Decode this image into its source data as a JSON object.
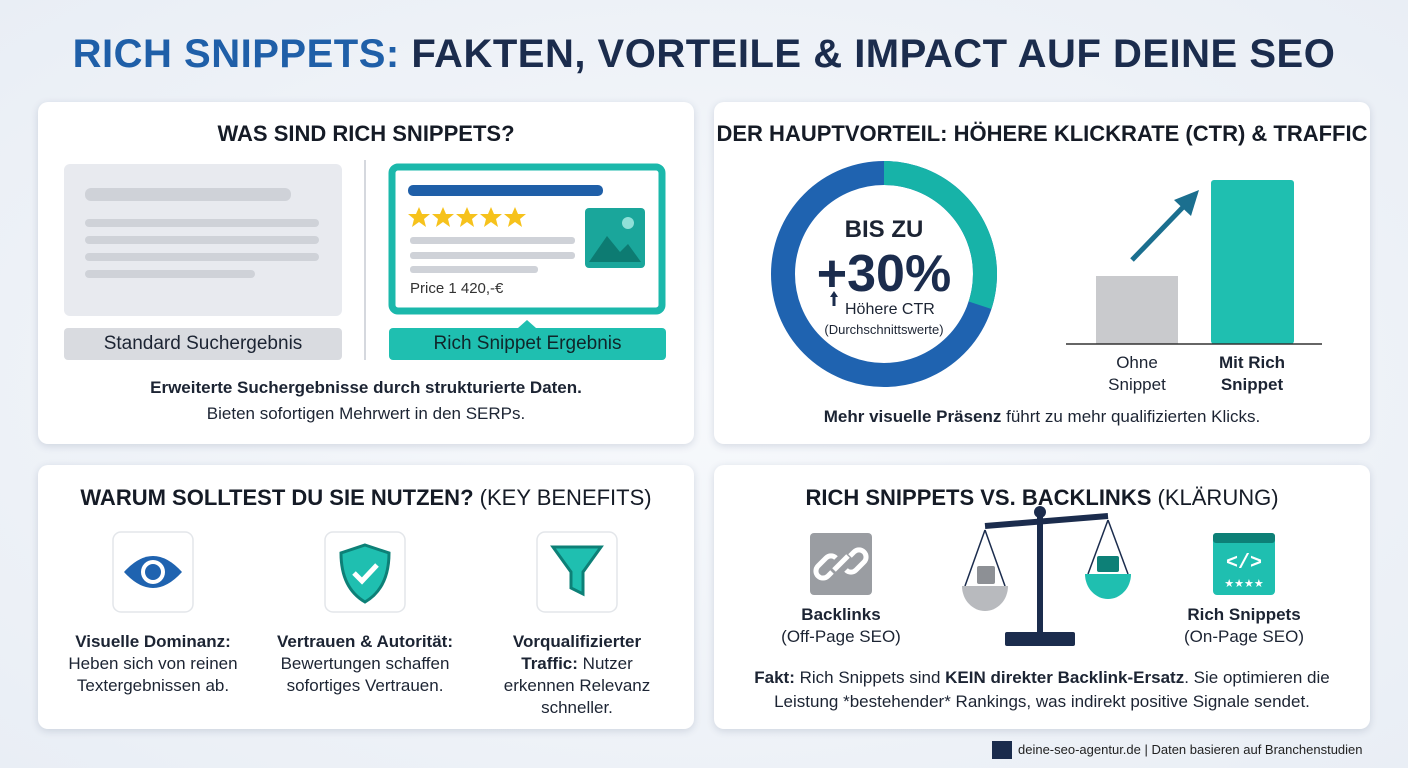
{
  "title": {
    "highlight": "RICH SNIPPETS:",
    "rest": "FAKTEN, VORTEILE & IMPACT AUF DEINE SEO"
  },
  "what": {
    "heading": "WAS SIND RICH SNIPPETS?",
    "standard_label": "Standard Suchergebnis",
    "rich_price": "Price 1 420,-€",
    "rich_label": "Rich Snippet Ergebnis",
    "summary_bold": "Erweiterte Suchergebnisse durch strukturierte Daten.",
    "summary": "Bieten sofortigen Mehrwert in den SERPs."
  },
  "ctr": {
    "heading": "DER HAUPTVORTEIL: HÖHERE KLICKRATE (CTR) & TRAFFIC",
    "donut_top": "BIS ZU",
    "donut_value": {
      "value": 30,
      "label": "+30%"
    },
    "donut_caption": "Höhere CTR",
    "donut_note": "(Durchschnittswerte)",
    "bars": [
      {
        "label": "Ohne Snippet"
      },
      {
        "label": "Mit Rich Snippet"
      }
    ],
    "note_bold": "Mehr visuelle Präsenz",
    "note": "führt zu mehr qualifizierten Klicks."
  },
  "benefits": {
    "heading_bold": "WARUM SOLLTEST DU SIE NUTZEN?",
    "heading_rest": "(KEY BENEFITS)",
    "items": [
      {
        "title": "Visuelle Dominanz:",
        "text": "Heben sich von reinen Textergebnissen ab."
      },
      {
        "title": "Vertrauen & Autorität:",
        "text": "Bewertungen schaffen sofortiges Vertrauen."
      },
      {
        "title": "Vorqualifizierter Traffic:",
        "text": "Nutzer erkennen Relevanz schneller."
      }
    ]
  },
  "versus": {
    "heading_bold": "RICH SNIPPETS VS. BACKLINKS",
    "heading_rest": "(KLÄRUNG)",
    "left_title": "Backlinks",
    "left_sub": "(Off-Page SEO)",
    "right_title": "Rich Snippets",
    "right_sub": "(On-Page SEO)",
    "fact_label": "Fakt:",
    "fact_text_1": "Rich Snippets sind",
    "fact_emphasis": "KEIN direkter Backlink-Ersatz",
    "fact_text_2": ". Sie optimieren die Leistung *bestehender* Rankings, was indirekt positive Signale sendet."
  },
  "footer": "deine-seo-agentur.de | Daten basieren auf Branchenstudien"
}
